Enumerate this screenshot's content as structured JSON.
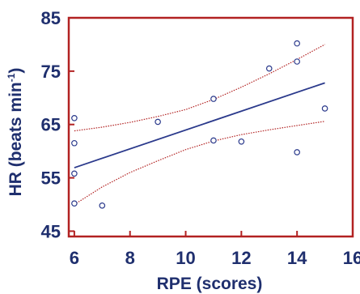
{
  "chart_data": {
    "type": "scatter",
    "xlabel": "RPE (scores)",
    "ylabel": {
      "prefix": "HR (beats min",
      "superscript": "-1",
      "suffix": ")"
    },
    "xlim": [
      5.8,
      16
    ],
    "ylim": [
      44,
      85
    ],
    "xticks": [
      6,
      8,
      10,
      12,
      14,
      16
    ],
    "yticks": [
      45,
      55,
      65,
      75,
      85
    ],
    "grid": false,
    "colors": {
      "axis": "#b22222",
      "points": "#2b3a8c",
      "fit": "#2b3a8c",
      "ci": "#b22222",
      "text": "#1f2f6e"
    },
    "points": [
      {
        "x": 6,
        "y": 66.2
      },
      {
        "x": 6,
        "y": 61.5
      },
      {
        "x": 6,
        "y": 55.8
      },
      {
        "x": 6,
        "y": 50.2
      },
      {
        "x": 7,
        "y": 49.8
      },
      {
        "x": 9,
        "y": 65.5
      },
      {
        "x": 11,
        "y": 69.8
      },
      {
        "x": 11,
        "y": 62.0
      },
      {
        "x": 12,
        "y": 61.8
      },
      {
        "x": 13,
        "y": 75.5
      },
      {
        "x": 14,
        "y": 80.2
      },
      {
        "x": 14,
        "y": 76.8
      },
      {
        "x": 14,
        "y": 59.8
      },
      {
        "x": 15,
        "y": 68.0
      }
    ],
    "fit_line": {
      "x": [
        6,
        15
      ],
      "y": [
        56.9,
        72.8
      ]
    },
    "ci_upper": {
      "x": [
        6,
        7,
        8,
        9,
        10,
        11,
        12,
        13,
        14,
        15
      ],
      "y": [
        63.8,
        64.5,
        65.4,
        66.5,
        67.8,
        69.7,
        72.0,
        74.5,
        77.2,
        80.0
      ]
    },
    "ci_lower": {
      "x": [
        6,
        7,
        8,
        9,
        10,
        11,
        12,
        13,
        14,
        15
      ],
      "y": [
        50.0,
        53.3,
        56.0,
        58.2,
        60.3,
        61.9,
        63.1,
        64.0,
        64.8,
        65.6
      ]
    }
  }
}
